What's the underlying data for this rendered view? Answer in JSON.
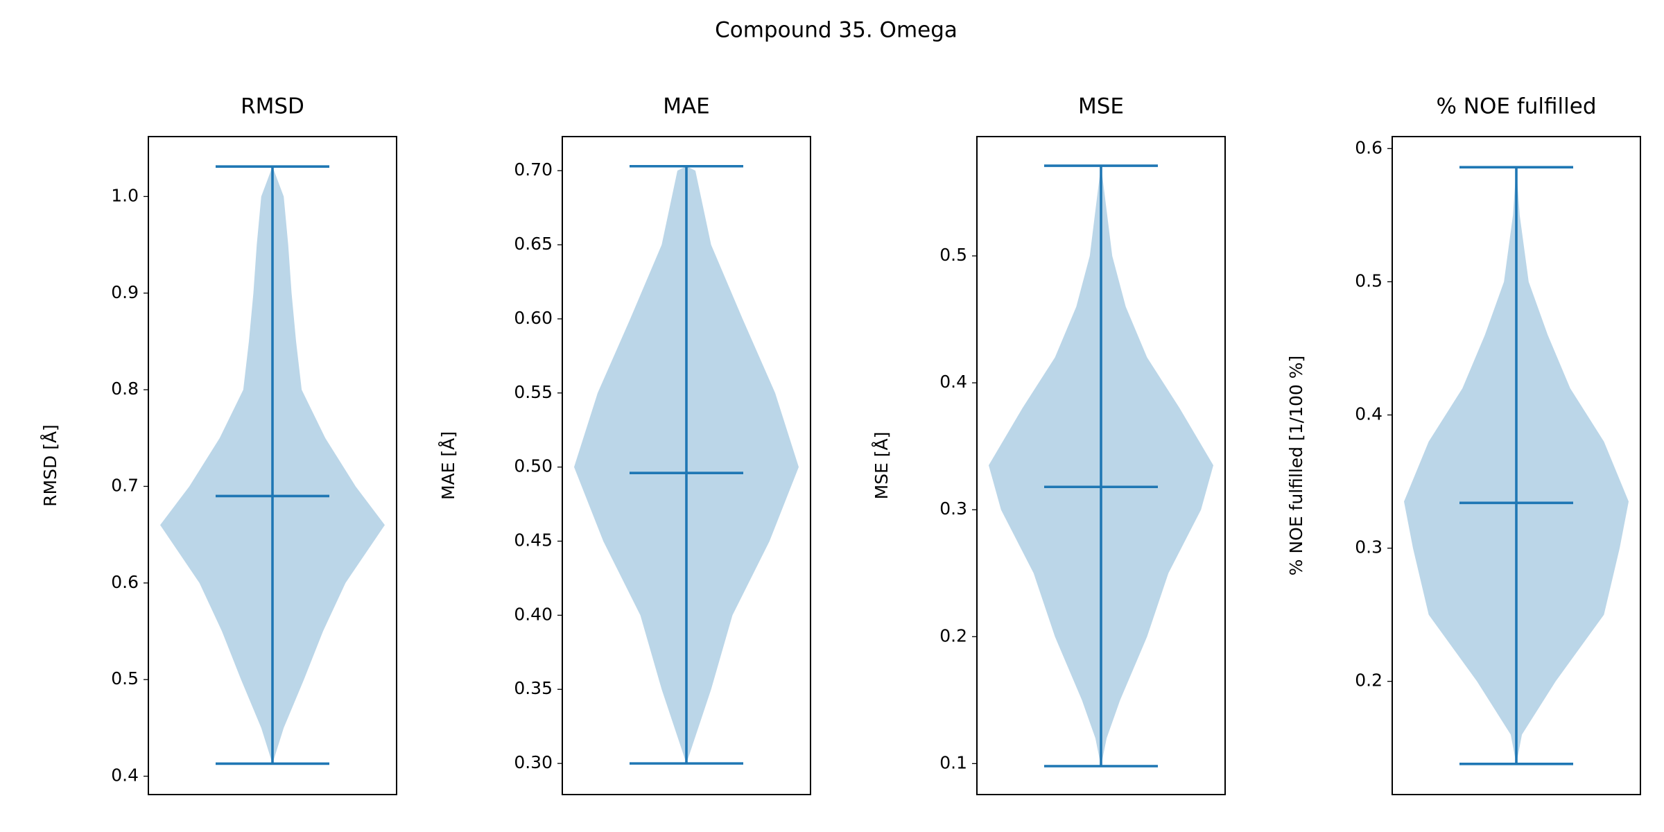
{
  "title": "Compound 35. Omega",
  "chart_data": [
    {
      "type": "violin",
      "title": "RMSD",
      "ylabel": "RMSD [Å]",
      "color": "#1f77b4",
      "ylim": [
        0.381,
        1.062
      ],
      "yticks": [
        0.4,
        0.5,
        0.6,
        0.7,
        0.8,
        0.9,
        {
          "value": 1.0,
          "label": "1.0"
        }
      ],
      "min": 0.413,
      "max": 1.031,
      "mean": 0.69,
      "violin": {
        "y": [
          0.413,
          0.45,
          0.5,
          0.55,
          0.6,
          0.66,
          0.7,
          0.75,
          0.8,
          0.85,
          0.9,
          0.95,
          1.0,
          1.031
        ],
        "width": [
          0,
          0.1,
          0.28,
          0.45,
          0.65,
          1.0,
          0.74,
          0.47,
          0.26,
          0.21,
          0.17,
          0.14,
          0.1,
          0
        ]
      }
    },
    {
      "type": "violin",
      "title": "MAE",
      "ylabel": "MAE [Å]",
      "color": "#1f77b4",
      "ylim": [
        0.279,
        0.723
      ],
      "yticks": [
        {
          "value": 0.3,
          "label": "0.30"
        },
        0.35,
        {
          "value": 0.4,
          "label": "0.40"
        },
        0.45,
        {
          "value": 0.5,
          "label": "0.50"
        },
        0.55,
        {
          "value": 0.6,
          "label": "0.60"
        },
        0.65,
        {
          "value": 0.7,
          "label": "0.70"
        }
      ],
      "min": 0.3,
      "max": 0.703,
      "mean": 0.496,
      "violin": {
        "y": [
          0.3,
          0.35,
          0.4,
          0.45,
          0.5,
          0.55,
          0.6,
          0.65,
          0.7,
          0.703
        ],
        "width": [
          0,
          0.22,
          0.41,
          0.74,
          1.0,
          0.79,
          0.5,
          0.22,
          0.08,
          0
        ]
      }
    },
    {
      "type": "violin",
      "title": "MSE",
      "ylabel": "MSE [Å]",
      "color": "#1f77b4",
      "ylim": [
        0.0756,
        0.594
      ],
      "yticks": [
        0.1,
        0.2,
        0.3,
        0.4,
        0.5
      ],
      "min": 0.098,
      "max": 0.571,
      "mean": 0.318,
      "violin": {
        "y": [
          0.098,
          0.12,
          0.15,
          0.2,
          0.25,
          0.3,
          0.335,
          0.38,
          0.42,
          0.46,
          0.5,
          0.55,
          0.571
        ],
        "width": [
          0,
          0.05,
          0.17,
          0.41,
          0.6,
          0.89,
          1.0,
          0.7,
          0.41,
          0.22,
          0.1,
          0.03,
          0
        ]
      }
    },
    {
      "type": "violin",
      "title": "% NOE fulfilled",
      "ylabel": "% NOE fulfilled [1/100 %]",
      "color": "#1f77b4",
      "ylim": [
        0.115,
        0.609
      ],
      "yticks": [
        0.2,
        0.3,
        0.4,
        0.5,
        0.6
      ],
      "min": 0.138,
      "max": 0.586,
      "mean": 0.334,
      "violin": {
        "y": [
          0.138,
          0.16,
          0.2,
          0.25,
          0.3,
          0.335,
          0.38,
          0.42,
          0.46,
          0.5,
          0.55,
          0.586
        ],
        "width": [
          0,
          0.05,
          0.35,
          0.78,
          0.92,
          1.0,
          0.78,
          0.48,
          0.28,
          0.11,
          0.03,
          0
        ]
      }
    }
  ]
}
